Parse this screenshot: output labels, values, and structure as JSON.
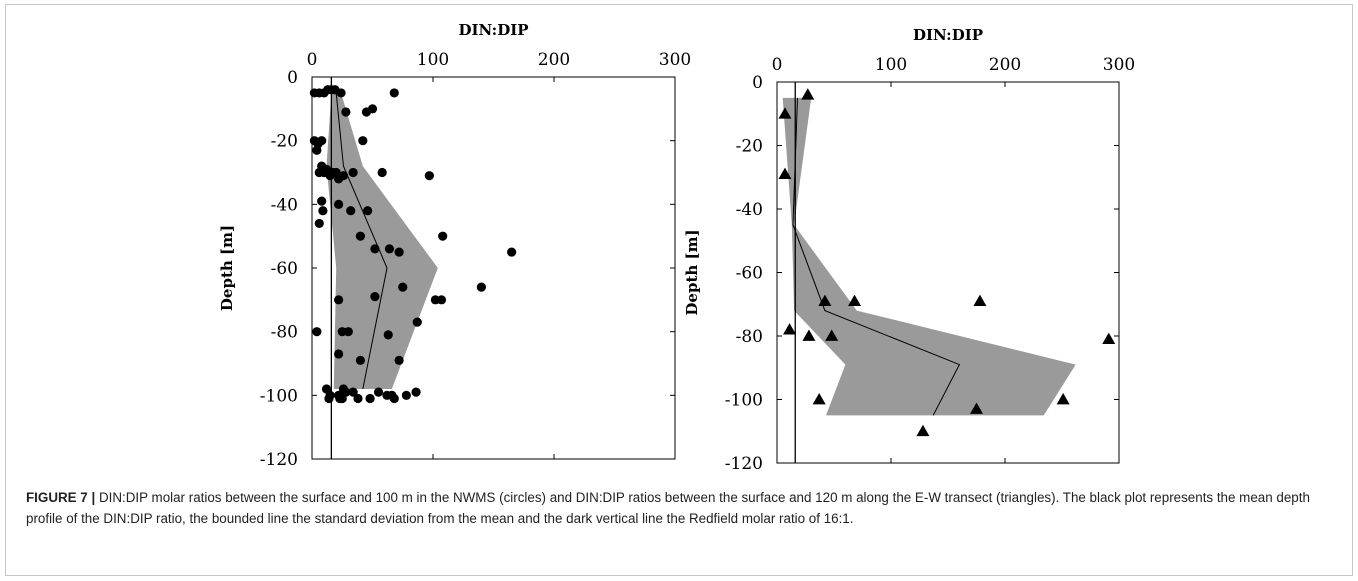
{
  "caption": {
    "label": "FIGURE 7 |",
    "text": " DIN:DIP molar ratios between the surface and 100 m in the NWMS (circles) and DIN:DIP ratios between the surface and 120 m along the E-W transect (triangles). The black plot represents the mean depth profile of the DIN:DIP ratio, the bounded line the standard deviation from the mean and the dark vertical line the Redfield molar ratio of 16:1."
  },
  "chart_data": [
    {
      "type": "scatter",
      "marker": "circle",
      "xlabel": "DIN:DIP",
      "ylabel": "Depth [m]",
      "xlim": [
        0,
        300
      ],
      "ylim": [
        -120,
        0
      ],
      "xticks": [
        0,
        100,
        200,
        300
      ],
      "yticks": [
        0,
        -20,
        -40,
        -60,
        -80,
        -100,
        -120
      ],
      "x_axis_position": "top",
      "grid": false,
      "redfield_ratio": 16,
      "points": [
        [
          2,
          -5
        ],
        [
          6,
          -5
        ],
        [
          10,
          -5
        ],
        [
          13,
          -4
        ],
        [
          16,
          -4
        ],
        [
          19,
          -4
        ],
        [
          24,
          -5
        ],
        [
          68,
          -5
        ],
        [
          28,
          -11
        ],
        [
          45,
          -11
        ],
        [
          50,
          -10
        ],
        [
          42,
          -20
        ],
        [
          2,
          -20
        ],
        [
          5,
          -21
        ],
        [
          8,
          -20
        ],
        [
          4,
          -23
        ],
        [
          8,
          -28
        ],
        [
          6,
          -30
        ],
        [
          10,
          -30
        ],
        [
          12,
          -29
        ],
        [
          15,
          -31
        ],
        [
          17,
          -30
        ],
        [
          20,
          -30
        ],
        [
          22,
          -32
        ],
        [
          26,
          -31
        ],
        [
          34,
          -30
        ],
        [
          58,
          -30
        ],
        [
          97,
          -31
        ],
        [
          8,
          -39
        ],
        [
          9,
          -42
        ],
        [
          22,
          -40
        ],
        [
          32,
          -42
        ],
        [
          46,
          -42
        ],
        [
          6,
          -46
        ],
        [
          40,
          -50
        ],
        [
          108,
          -50
        ],
        [
          52,
          -54
        ],
        [
          64,
          -54
        ],
        [
          72,
          -55
        ],
        [
          165,
          -55
        ],
        [
          75,
          -66
        ],
        [
          140,
          -66
        ],
        [
          22,
          -70
        ],
        [
          52,
          -69
        ],
        [
          102,
          -70
        ],
        [
          107,
          -70
        ],
        [
          25,
          -80
        ],
        [
          30,
          -80
        ],
        [
          4,
          -80
        ],
        [
          87,
          -77
        ],
        [
          63,
          -81
        ],
        [
          22,
          -87
        ],
        [
          40,
          -89
        ],
        [
          72,
          -89
        ],
        [
          12,
          -98
        ],
        [
          26,
          -98
        ],
        [
          28,
          -99
        ],
        [
          34,
          -99
        ],
        [
          15,
          -100
        ],
        [
          22,
          -100
        ],
        [
          25,
          -101
        ],
        [
          55,
          -99
        ],
        [
          62,
          -100
        ],
        [
          66,
          -100
        ],
        [
          68,
          -101
        ],
        [
          38,
          -101
        ],
        [
          48,
          -101
        ],
        [
          78,
          -100
        ],
        [
          86,
          -99
        ],
        [
          14,
          -101
        ],
        [
          23,
          -101
        ]
      ],
      "mean_profile": [
        {
          "depth": -5,
          "mean": 20,
          "sd_low": 16,
          "sd_high": 24
        },
        {
          "depth": -28,
          "mean": 26,
          "sd_low": 12,
          "sd_high": 42
        },
        {
          "depth": -60,
          "mean": 62,
          "sd_low": 20,
          "sd_high": 104
        },
        {
          "depth": -98,
          "mean": 42,
          "sd_low": 18,
          "sd_high": 66
        }
      ]
    },
    {
      "type": "scatter",
      "marker": "triangle",
      "xlabel": "DIN:DIP",
      "ylabel": "Depth [m]",
      "xlim": [
        0,
        300
      ],
      "ylim": [
        -120,
        0
      ],
      "xticks": [
        0,
        100,
        200,
        300
      ],
      "yticks": [
        0,
        -20,
        -40,
        -60,
        -80,
        -100,
        -120
      ],
      "x_axis_position": "top",
      "grid": false,
      "redfield_ratio": 16,
      "points": [
        [
          27,
          -4
        ],
        [
          7,
          -10
        ],
        [
          7,
          -29
        ],
        [
          42,
          -69
        ],
        [
          68,
          -69
        ],
        [
          178,
          -69
        ],
        [
          11,
          -78
        ],
        [
          28,
          -80
        ],
        [
          48,
          -80
        ],
        [
          291,
          -81
        ],
        [
          37,
          -100
        ],
        [
          175,
          -103
        ],
        [
          251,
          -100
        ],
        [
          128,
          -110
        ]
      ],
      "mean_profile": [
        {
          "depth": -5,
          "mean": 18,
          "sd_low": 5,
          "sd_high": 30
        },
        {
          "depth": -45,
          "mean": 14,
          "sd_low": 13,
          "sd_high": 15
        },
        {
          "depth": -72,
          "mean": 42,
          "sd_low": 15,
          "sd_high": 70
        },
        {
          "depth": -89,
          "mean": 160,
          "sd_low": 60,
          "sd_high": 262
        },
        {
          "depth": -105,
          "mean": 137,
          "sd_low": 43,
          "sd_high": 234
        }
      ]
    }
  ]
}
